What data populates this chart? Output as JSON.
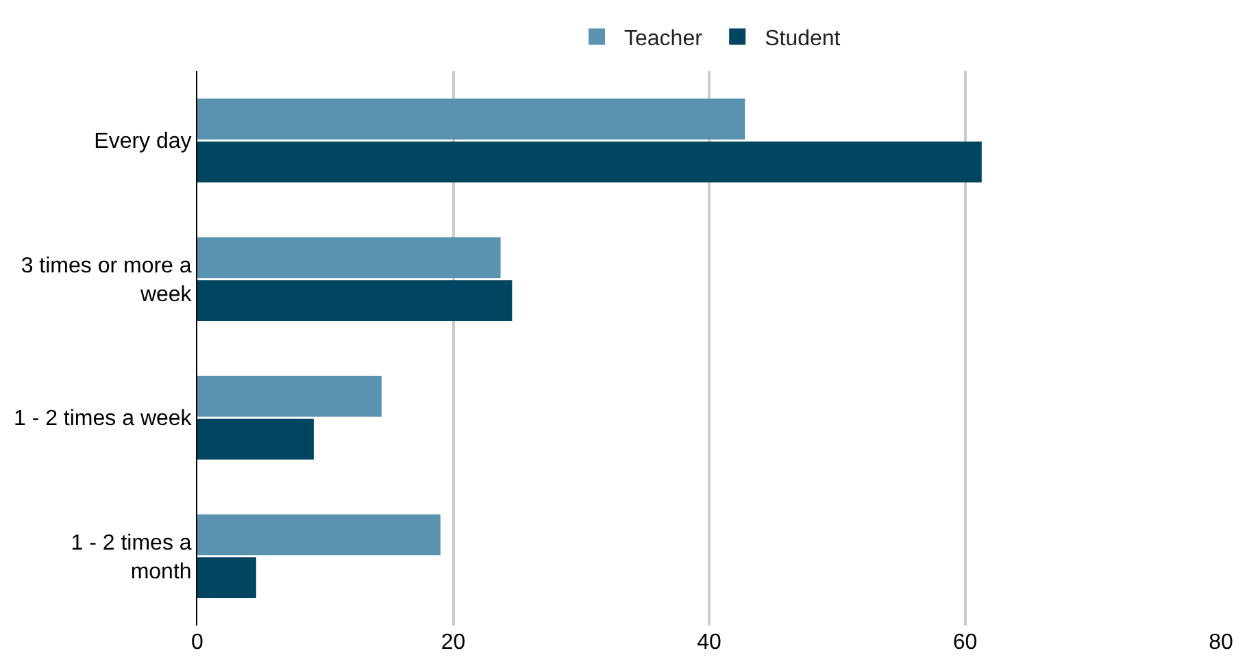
{
  "chart_data": {
    "type": "bar",
    "orientation": "horizontal",
    "categories": [
      "Every day",
      "3 times or more a week",
      "1 - 2 times a week",
      "1 - 2 times a month"
    ],
    "series": [
      {
        "name": "Teacher",
        "color": "#5a93b0",
        "values": [
          42.8,
          23.7,
          14.4,
          19.0
        ]
      },
      {
        "name": "Student",
        "color": "#014561",
        "values": [
          61.3,
          24.6,
          9.1,
          4.6
        ]
      }
    ],
    "xlim": [
      0,
      80
    ],
    "xticks": [
      0,
      20,
      40,
      60,
      80
    ],
    "grid": "x",
    "legend": "top"
  }
}
